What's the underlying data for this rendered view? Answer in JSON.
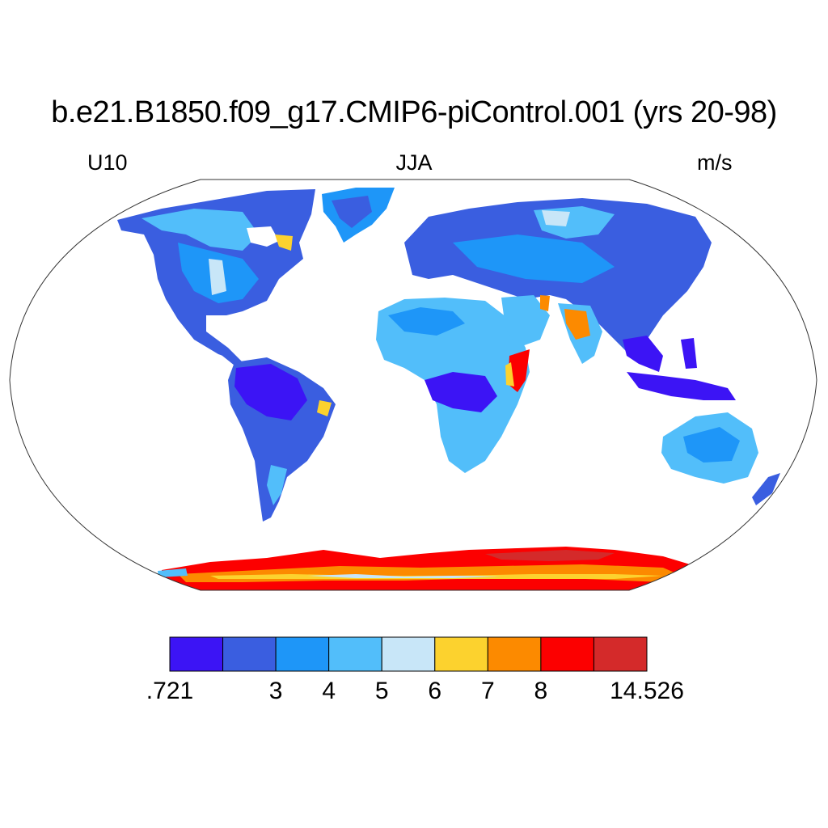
{
  "title": "b.e21.B1850.f09_g17.CMIP6-piControl.001 (yrs 20-98)",
  "left_subtitle": "U10",
  "center_subtitle": "JJA",
  "right_subtitle": "m/s",
  "colorbar": {
    "colors": [
      "#3c14f5",
      "#3a5ee0",
      "#1e96f8",
      "#52befa",
      "#c8e6f8",
      "#fcd22e",
      "#fc8a00",
      "#fc0000",
      "#d42a2a"
    ],
    "labels": [
      ".721",
      "3",
      "4",
      "5",
      "6",
      "7",
      "8",
      "14.526"
    ],
    "label_boundaries": [
      0,
      2,
      3,
      4,
      5,
      6,
      7,
      9
    ]
  },
  "map": {
    "projection": "robinson",
    "variable": "U10",
    "season": "JJA",
    "units": "m/s"
  }
}
